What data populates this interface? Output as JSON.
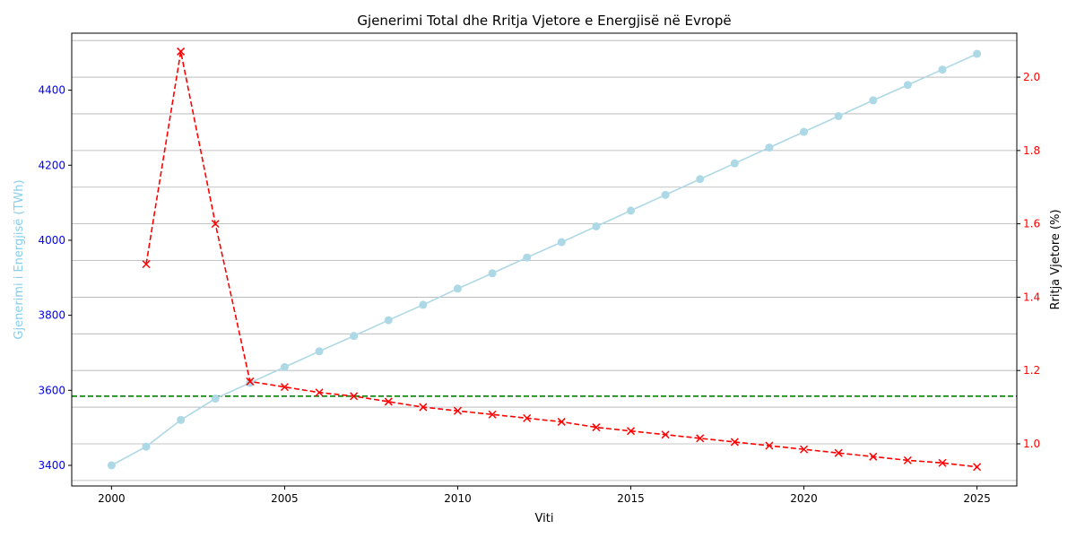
{
  "chart_data": {
    "type": "line",
    "title": "Gjenerimi Total dhe Rritja Vjetore e Energjisë në Evropë",
    "xlabel": "Viti",
    "ylabel_left": "Gjenerimi i Energjisë (TWh)",
    "ylabel_right": "Rritja Vjetore (%)",
    "xlim": [
      1998.85,
      2026.15
    ],
    "ylim_left": [
      3345,
      4552
    ],
    "ylim_right": [
      0.885,
      2.12
    ],
    "xticks": [
      2000,
      2005,
      2010,
      2015,
      2020,
      2025
    ],
    "yticks_left": [
      3400,
      3600,
      3800,
      4000,
      4200,
      4400
    ],
    "yticks_right": [
      1.0,
      1.2,
      1.4,
      1.6,
      1.8,
      2.0
    ],
    "grid": "horizontal lines at right-axis ticks",
    "colors": {
      "generation": "#add8e6",
      "growth": "#ff0000",
      "average": "#008000",
      "left_ticks": "#0000ff",
      "right_ticks": "#ff0000",
      "left_label": "#87ceeb"
    },
    "series": [
      {
        "axis": "left",
        "marker": "circle",
        "style": "solid",
        "x": [
          2000,
          2001,
          2002,
          2003,
          2004,
          2005,
          2006,
          2007,
          2008,
          2009,
          2010,
          2011,
          2012,
          2013,
          2014,
          2015,
          2016,
          2017,
          2018,
          2019,
          2020,
          2021,
          2022,
          2023,
          2024,
          2025
        ],
        "values": [
          3400,
          3450,
          3521,
          3578,
          3620,
          3662,
          3704,
          3745,
          3787,
          3828,
          3871,
          3912,
          3954,
          3995,
          4037,
          4079,
          4121,
          4163,
          4205,
          4247,
          4289,
          4331,
          4373,
          4414,
          4455,
          4497
        ]
      },
      {
        "axis": "right",
        "marker": "x",
        "style": "dashed",
        "x": [
          2001,
          2002,
          2003,
          2004,
          2005,
          2006,
          2007,
          2008,
          2009,
          2010,
          2011,
          2012,
          2013,
          2014,
          2015,
          2016,
          2017,
          2018,
          2019,
          2020,
          2021,
          2022,
          2023,
          2024,
          2025
        ],
        "values": [
          1.49,
          2.07,
          1.6,
          1.17,
          1.155,
          1.14,
          1.13,
          1.115,
          1.1,
          1.09,
          1.08,
          1.07,
          1.06,
          1.045,
          1.035,
          1.025,
          1.015,
          1.005,
          0.995,
          0.985,
          0.975,
          0.965,
          0.955,
          0.948,
          0.937
        ]
      }
    ],
    "reference_line": {
      "axis": "right",
      "value": 1.13,
      "style": "dashed"
    }
  }
}
